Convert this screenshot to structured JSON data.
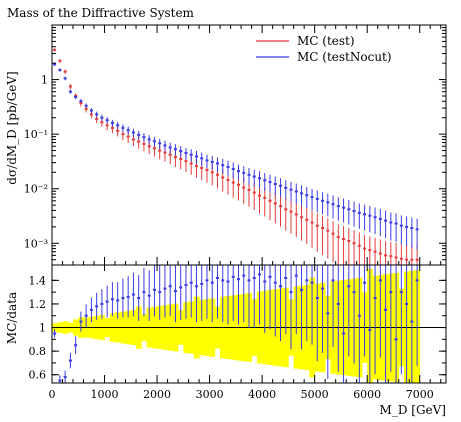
{
  "chart_data": [
    {
      "type": "scatter",
      "title": "Mass of the Diffractive System",
      "xlabel": "",
      "ylabel": "dσ/dM_D [pb/GeV]",
      "xlim": [
        0,
        7500
      ],
      "yscale": "log",
      "ylim": [
        0.0004,
        10
      ],
      "y_ticks": [
        {
          "value": 1,
          "label": "1"
        },
        {
          "value": 0.1,
          "label": "10⁻¹"
        },
        {
          "value": 0.01,
          "label": "10⁻²"
        },
        {
          "value": 0.001,
          "label": "10⁻³"
        }
      ],
      "legend": "top-right",
      "series": [
        {
          "name": "MC (test)",
          "color": "#e53b3b",
          "points": [
            [
              50,
              3.5
            ],
            [
              150,
              2.2
            ],
            [
              250,
              1.4
            ],
            [
              350,
              0.75
            ],
            [
              450,
              0.5
            ],
            [
              550,
              0.37
            ],
            [
              650,
              0.29
            ],
            [
              750,
              0.23
            ],
            [
              850,
              0.19
            ],
            [
              950,
              0.165
            ],
            [
              1050,
              0.145
            ],
            [
              1150,
              0.13
            ],
            [
              1250,
              0.115
            ],
            [
              1350,
              0.1
            ],
            [
              1450,
              0.09
            ],
            [
              1550,
              0.08
            ],
            [
              1650,
              0.073
            ],
            [
              1750,
              0.066
            ],
            [
              1850,
              0.06
            ],
            [
              1950,
              0.055
            ],
            [
              2050,
              0.05
            ],
            [
              2150,
              0.046
            ],
            [
              2250,
              0.042
            ],
            [
              2350,
              0.038
            ],
            [
              2450,
              0.035
            ],
            [
              2550,
              0.032
            ],
            [
              2650,
              0.029
            ],
            [
              2750,
              0.026
            ],
            [
              2850,
              0.024
            ],
            [
              2950,
              0.022
            ],
            [
              3050,
              0.02
            ],
            [
              3150,
              0.018
            ],
            [
              3250,
              0.016
            ],
            [
              3350,
              0.0145
            ],
            [
              3450,
              0.013
            ],
            [
              3550,
              0.0118
            ],
            [
              3650,
              0.0105
            ],
            [
              3750,
              0.0095
            ],
            [
              3850,
              0.0085
            ],
            [
              3950,
              0.0075
            ],
            [
              4050,
              0.0068
            ],
            [
              4150,
              0.006
            ],
            [
              4250,
              0.0054
            ],
            [
              4350,
              0.0048
            ],
            [
              4450,
              0.0042
            ],
            [
              4550,
              0.0038
            ],
            [
              4650,
              0.0034
            ],
            [
              4750,
              0.003
            ],
            [
              4850,
              0.0027
            ],
            [
              4950,
              0.0024
            ],
            [
              5050,
              0.0021
            ],
            [
              5150,
              0.0019
            ],
            [
              5250,
              0.0017
            ],
            [
              5350,
              0.0015
            ],
            [
              5450,
              0.0013
            ],
            [
              5550,
              0.0012
            ],
            [
              5650,
              0.0011
            ],
            [
              5750,
              0.001
            ],
            [
              5850,
              0.0009
            ],
            [
              5950,
              0.0008
            ],
            [
              6050,
              0.00075
            ],
            [
              6150,
              0.0007
            ],
            [
              6250,
              0.00065
            ],
            [
              6350,
              0.0006
            ],
            [
              6450,
              0.00058
            ],
            [
              6550,
              0.00055
            ],
            [
              6650,
              0.00052
            ],
            [
              6750,
              0.0005
            ],
            [
              6850,
              0.0005
            ],
            [
              6950,
              0.0005
            ]
          ]
        },
        {
          "name": "MC (testNocut)",
          "color": "#3b3be5",
          "points": [
            [
              50,
              1.9
            ],
            [
              150,
              1.5
            ],
            [
              250,
              1.05
            ],
            [
              350,
              0.6
            ],
            [
              450,
              0.48
            ],
            [
              550,
              0.4
            ],
            [
              650,
              0.33
            ],
            [
              750,
              0.27
            ],
            [
              850,
              0.23
            ],
            [
              950,
              0.2
            ],
            [
              1050,
              0.18
            ],
            [
              1150,
              0.16
            ],
            [
              1250,
              0.145
            ],
            [
              1350,
              0.13
            ],
            [
              1450,
              0.118
            ],
            [
              1550,
              0.107
            ],
            [
              1650,
              0.097
            ],
            [
              1750,
              0.088
            ],
            [
              1850,
              0.08
            ],
            [
              1950,
              0.074
            ],
            [
              2050,
              0.068
            ],
            [
              2150,
              0.062
            ],
            [
              2250,
              0.057
            ],
            [
              2350,
              0.053
            ],
            [
              2450,
              0.049
            ],
            [
              2550,
              0.045
            ],
            [
              2650,
              0.042
            ],
            [
              2750,
              0.039
            ],
            [
              2850,
              0.036
            ],
            [
              2950,
              0.033
            ],
            [
              3050,
              0.031
            ],
            [
              3150,
              0.029
            ],
            [
              3250,
              0.027
            ],
            [
              3350,
              0.025
            ],
            [
              3450,
              0.023
            ],
            [
              3550,
              0.021
            ],
            [
              3650,
              0.0195
            ],
            [
              3750,
              0.018
            ],
            [
              3850,
              0.0167
            ],
            [
              3950,
              0.0155
            ],
            [
              4050,
              0.0143
            ],
            [
              4150,
              0.0132
            ],
            [
              4250,
              0.0122
            ],
            [
              4350,
              0.0113
            ],
            [
              4450,
              0.0104
            ],
            [
              4550,
              0.0096
            ],
            [
              4650,
              0.0089
            ],
            [
              4750,
              0.0082
            ],
            [
              4850,
              0.0076
            ],
            [
              4950,
              0.007
            ],
            [
              5050,
              0.0065
            ],
            [
              5150,
              0.006
            ],
            [
              5250,
              0.0056
            ],
            [
              5350,
              0.0052
            ],
            [
              5450,
              0.0048
            ],
            [
              5550,
              0.0045
            ],
            [
              5650,
              0.0042
            ],
            [
              5750,
              0.0039
            ],
            [
              5850,
              0.0036
            ],
            [
              5950,
              0.0034
            ],
            [
              6050,
              0.0032
            ],
            [
              6150,
              0.003
            ],
            [
              6250,
              0.0028
            ],
            [
              6350,
              0.0026
            ],
            [
              6450,
              0.0024
            ],
            [
              6550,
              0.0023
            ],
            [
              6650,
              0.0021
            ],
            [
              6750,
              0.002
            ],
            [
              6850,
              0.0019
            ],
            [
              6950,
              0.0018
            ]
          ]
        }
      ]
    },
    {
      "type": "scatter",
      "title": "",
      "xlabel": "M_D [GeV]",
      "ylabel": "MC/data",
      "xlim": [
        0,
        7500
      ],
      "ylim": [
        0.53,
        1.53
      ],
      "x_ticks": [
        0,
        1000,
        2000,
        3000,
        4000,
        5000,
        6000,
        7000
      ],
      "y_ticks": [
        0.6,
        0.8,
        1,
        1.2,
        1.4
      ],
      "reference_line": 1,
      "band_color": "#ffff00",
      "series": [
        {
          "name": "MC (testNocut)",
          "color": "#3b3be5",
          "points": [
            [
              50,
              0.95
            ],
            [
              150,
              0.55
            ],
            [
              250,
              0.58
            ],
            [
              350,
              0.72
            ],
            [
              450,
              0.85
            ],
            [
              550,
              1.05
            ],
            [
              650,
              1.1
            ],
            [
              750,
              1.15
            ],
            [
              850,
              1.18
            ],
            [
              950,
              1.2
            ],
            [
              1050,
              1.22
            ],
            [
              1150,
              1.24
            ],
            [
              1250,
              1.23
            ],
            [
              1350,
              1.25
            ],
            [
              1450,
              1.26
            ],
            [
              1550,
              1.28
            ],
            [
              1650,
              1.25
            ],
            [
              1750,
              1.3
            ],
            [
              1850,
              1.27
            ],
            [
              1950,
              1.32
            ],
            [
              2050,
              1.3
            ],
            [
              2150,
              1.33
            ],
            [
              2250,
              1.35
            ],
            [
              2350,
              1.31
            ],
            [
              2450,
              1.34
            ],
            [
              2550,
              1.36
            ],
            [
              2650,
              1.38
            ],
            [
              2750,
              1.35
            ],
            [
              2850,
              1.37
            ],
            [
              2950,
              1.4
            ],
            [
              3050,
              1.38
            ],
            [
              3150,
              1.42
            ],
            [
              3250,
              1.4
            ],
            [
              3350,
              1.39
            ],
            [
              3450,
              1.43
            ],
            [
              3550,
              1.41
            ],
            [
              3650,
              1.44
            ],
            [
              3750,
              1.4
            ],
            [
              3850,
              1.42
            ],
            [
              3950,
              1.45
            ],
            [
              4050,
              1.39
            ],
            [
              4150,
              1.43
            ],
            [
              4250,
              1.38
            ],
            [
              4350,
              1.35
            ],
            [
              4450,
              1.42
            ],
            [
              4550,
              1.3
            ],
            [
              4650,
              1.44
            ],
            [
              4750,
              1.32
            ],
            [
              4850,
              1.4
            ],
            [
              4950,
              1.38
            ],
            [
              5050,
              1.25
            ],
            [
              5150,
              1.33
            ],
            [
              5250,
              1.12
            ],
            [
              5350,
              1.4
            ],
            [
              5450,
              1.2
            ],
            [
              5550,
              0.95
            ],
            [
              5650,
              1.35
            ],
            [
              5750,
              1.3
            ],
            [
              5850,
              1.1
            ],
            [
              5950,
              1.38
            ],
            [
              6050,
              0.98
            ],
            [
              6150,
              1.25
            ],
            [
              6250,
              1.4
            ],
            [
              6350,
              1.15
            ],
            [
              6450,
              1.3
            ],
            [
              6550,
              0.9
            ],
            [
              6650,
              1.3
            ],
            [
              6750,
              1.2
            ],
            [
              6850,
              1.05
            ],
            [
              6950,
              1.4
            ]
          ]
        }
      ]
    }
  ]
}
